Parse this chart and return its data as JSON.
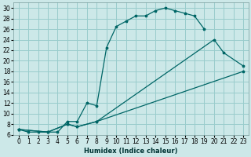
{
  "xlabel": "Humidex (Indice chaleur)",
  "bg_color": "#cce8e8",
  "grid_color": "#99cccc",
  "line_color": "#006666",
  "xlim": [
    -0.5,
    23.5
  ],
  "ylim": [
    6,
    31
  ],
  "xticks": [
    0,
    1,
    2,
    3,
    4,
    5,
    6,
    7,
    8,
    9,
    10,
    11,
    12,
    13,
    14,
    15,
    16,
    17,
    18,
    19,
    20,
    21,
    22,
    23
  ],
  "yticks": [
    6,
    8,
    10,
    12,
    14,
    16,
    18,
    20,
    22,
    24,
    26,
    28,
    30
  ],
  "line1_x": [
    0,
    1,
    2,
    3,
    4,
    5,
    6,
    7,
    8,
    9,
    10,
    11,
    12,
    13,
    14,
    15,
    16,
    17,
    18,
    19
  ],
  "line1_y": [
    7,
    6.5,
    6.5,
    6.5,
    6.5,
    8.5,
    8.5,
    12,
    11.5,
    22.5,
    26.5,
    27.5,
    28.5,
    28.5,
    29.5,
    30.0,
    29.5,
    29.0,
    28.5,
    26.0
  ],
  "line2_x": [
    0,
    3,
    5,
    6,
    8,
    20,
    21,
    23
  ],
  "line2_y": [
    7,
    6.5,
    8.0,
    7.5,
    8.5,
    24.0,
    21.5,
    19.0
  ],
  "line3_x": [
    0,
    3,
    5,
    6,
    8,
    23
  ],
  "line3_y": [
    7,
    6.5,
    8.0,
    7.5,
    8.5,
    18.0
  ],
  "xlabel_fontsize": 6,
  "tick_fontsize": 5.5
}
